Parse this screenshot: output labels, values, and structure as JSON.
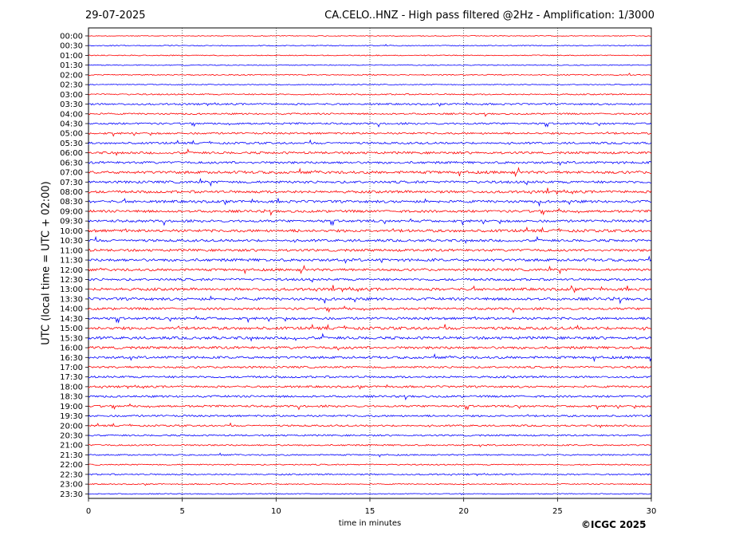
{
  "header": {
    "date": "29-07-2025",
    "title": "CA.CELO..HNZ - High pass filtered @2Hz - Amplification: 1/3000"
  },
  "footer": {
    "copyright": "©ICGC 2025"
  },
  "chart_data": {
    "type": "line",
    "title": "CA.CELO..HNZ - High pass filtered @2Hz - Amplification: 1/3000",
    "xlabel": "time in minutes",
    "ylabel": "UTC (local time = UTC + 02:00)",
    "xlim": [
      0,
      30
    ],
    "x_ticks": [
      0,
      5,
      10,
      15,
      20,
      25,
      30
    ],
    "y_ticks": [
      "00:00",
      "00:30",
      "01:00",
      "01:30",
      "02:00",
      "02:30",
      "03:00",
      "03:30",
      "04:00",
      "04:30",
      "05:00",
      "05:30",
      "06:00",
      "06:30",
      "07:00",
      "07:30",
      "08:00",
      "08:30",
      "09:00",
      "09:30",
      "10:00",
      "10:30",
      "11:00",
      "11:30",
      "12:00",
      "12:30",
      "13:00",
      "13:30",
      "14:00",
      "14:30",
      "15:00",
      "15:30",
      "16:00",
      "16:30",
      "17:00",
      "17:30",
      "18:00",
      "18:30",
      "19:00",
      "19:30",
      "20:00",
      "20:30",
      "21:00",
      "21:30",
      "22:00",
      "22:30",
      "23:00",
      "23:30"
    ],
    "grid": "vertical dotted lines at each 5 minutes",
    "trace_colors": [
      "#ff0000",
      "#0000ff"
    ],
    "activity": [
      0.05,
      0.1,
      0.1,
      0.1,
      0.15,
      0.1,
      0.25,
      0.4,
      0.35,
      0.45,
      0.45,
      0.5,
      0.6,
      0.6,
      0.75,
      0.65,
      0.7,
      0.7,
      0.65,
      0.65,
      0.75,
      0.65,
      0.65,
      0.75,
      0.65,
      0.6,
      0.75,
      0.75,
      0.6,
      0.65,
      0.8,
      0.75,
      0.7,
      0.65,
      0.5,
      0.5,
      0.5,
      0.5,
      0.5,
      0.45,
      0.4,
      0.35,
      0.3,
      0.25,
      0.2,
      0.3,
      0.15,
      0.1
    ]
  }
}
